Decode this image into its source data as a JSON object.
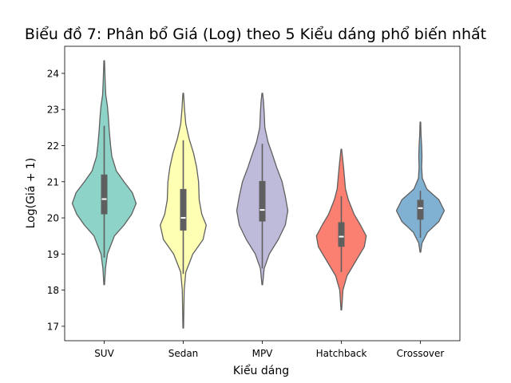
{
  "chart_data": {
    "type": "violin",
    "title": "Biểu đồ 7: Phân bổ Giá (Log) theo 5 Kiểu dáng phổ biến nhất",
    "xlabel": "Kiểu dáng",
    "ylabel": "Log(Giá + 1)",
    "ylim": [
      16.6,
      24.75
    ],
    "yticks": [
      17,
      18,
      19,
      20,
      21,
      22,
      23,
      24
    ],
    "grid": false,
    "categories": [
      "SUV",
      "Sedan",
      "MPV",
      "Hatchback",
      "Crossover"
    ],
    "colors": [
      "#8dd3c7",
      "#ffffb3",
      "#bebada",
      "#fb8072",
      "#80b1d3"
    ],
    "series": [
      {
        "category": "SUV",
        "min": 18.15,
        "max": 24.35,
        "whisker_low": 18.9,
        "whisker_high": 22.55,
        "q1": 20.1,
        "median": 20.52,
        "q3": 21.2,
        "density": [
          [
            18.15,
            0.01
          ],
          [
            18.6,
            0.04
          ],
          [
            19.0,
            0.1
          ],
          [
            19.5,
            0.32
          ],
          [
            19.8,
            0.62
          ],
          [
            20.1,
            0.86
          ],
          [
            20.4,
            1.0
          ],
          [
            20.7,
            0.88
          ],
          [
            21.0,
            0.62
          ],
          [
            21.3,
            0.38
          ],
          [
            21.7,
            0.24
          ],
          [
            22.0,
            0.2
          ],
          [
            22.4,
            0.16
          ],
          [
            22.8,
            0.13
          ],
          [
            23.1,
            0.1
          ],
          [
            23.4,
            0.05
          ],
          [
            23.8,
            0.03
          ],
          [
            24.35,
            0.01
          ]
        ]
      },
      {
        "category": "Sedan",
        "min": 16.95,
        "max": 23.45,
        "whisker_low": 18.45,
        "whisker_high": 22.15,
        "q1": 19.65,
        "median": 20.0,
        "q3": 20.8,
        "density": [
          [
            16.95,
            0.01
          ],
          [
            17.5,
            0.02
          ],
          [
            18.0,
            0.03
          ],
          [
            18.5,
            0.08
          ],
          [
            19.0,
            0.3
          ],
          [
            19.4,
            0.62
          ],
          [
            19.8,
            0.72
          ],
          [
            20.1,
            0.58
          ],
          [
            20.5,
            0.5
          ],
          [
            21.0,
            0.48
          ],
          [
            21.4,
            0.42
          ],
          [
            21.8,
            0.32
          ],
          [
            22.2,
            0.18
          ],
          [
            22.6,
            0.08
          ],
          [
            23.0,
            0.04
          ],
          [
            23.45,
            0.01
          ]
        ]
      },
      {
        "category": "MPV",
        "min": 18.15,
        "max": 23.45,
        "whisker_low": 18.6,
        "whisker_high": 22.05,
        "q1": 19.9,
        "median": 20.22,
        "q3": 21.02,
        "density": [
          [
            18.15,
            0.01
          ],
          [
            18.6,
            0.06
          ],
          [
            19.0,
            0.22
          ],
          [
            19.4,
            0.5
          ],
          [
            19.8,
            0.72
          ],
          [
            20.2,
            0.8
          ],
          [
            20.6,
            0.72
          ],
          [
            21.0,
            0.62
          ],
          [
            21.4,
            0.45
          ],
          [
            21.8,
            0.3
          ],
          [
            22.1,
            0.18
          ],
          [
            22.5,
            0.08
          ],
          [
            22.9,
            0.06
          ],
          [
            23.2,
            0.04
          ],
          [
            23.45,
            0.01
          ]
        ]
      },
      {
        "category": "Hatchback",
        "min": 17.45,
        "max": 21.9,
        "whisker_low": 18.5,
        "whisker_high": 20.6,
        "q1": 19.2,
        "median": 19.48,
        "q3": 19.88,
        "density": [
          [
            17.45,
            0.01
          ],
          [
            18.0,
            0.05
          ],
          [
            18.4,
            0.18
          ],
          [
            18.8,
            0.45
          ],
          [
            19.2,
            0.72
          ],
          [
            19.5,
            0.78
          ],
          [
            19.8,
            0.6
          ],
          [
            20.1,
            0.4
          ],
          [
            20.5,
            0.22
          ],
          [
            20.8,
            0.13
          ],
          [
            21.1,
            0.1
          ],
          [
            21.4,
            0.07
          ],
          [
            21.9,
            0.01
          ]
        ]
      },
      {
        "category": "Crossover",
        "min": 19.05,
        "max": 22.65,
        "whisker_low": 19.45,
        "whisker_high": 20.75,
        "q1": 19.95,
        "median": 20.27,
        "q3": 20.5,
        "density": [
          [
            19.05,
            0.01
          ],
          [
            19.3,
            0.05
          ],
          [
            19.6,
            0.22
          ],
          [
            19.9,
            0.58
          ],
          [
            20.2,
            0.75
          ],
          [
            20.5,
            0.58
          ],
          [
            20.8,
            0.2
          ],
          [
            21.1,
            0.06
          ],
          [
            21.4,
            0.04
          ],
          [
            21.7,
            0.05
          ],
          [
            22.0,
            0.04
          ],
          [
            22.3,
            0.02
          ],
          [
            22.65,
            0.01
          ]
        ]
      }
    ]
  }
}
